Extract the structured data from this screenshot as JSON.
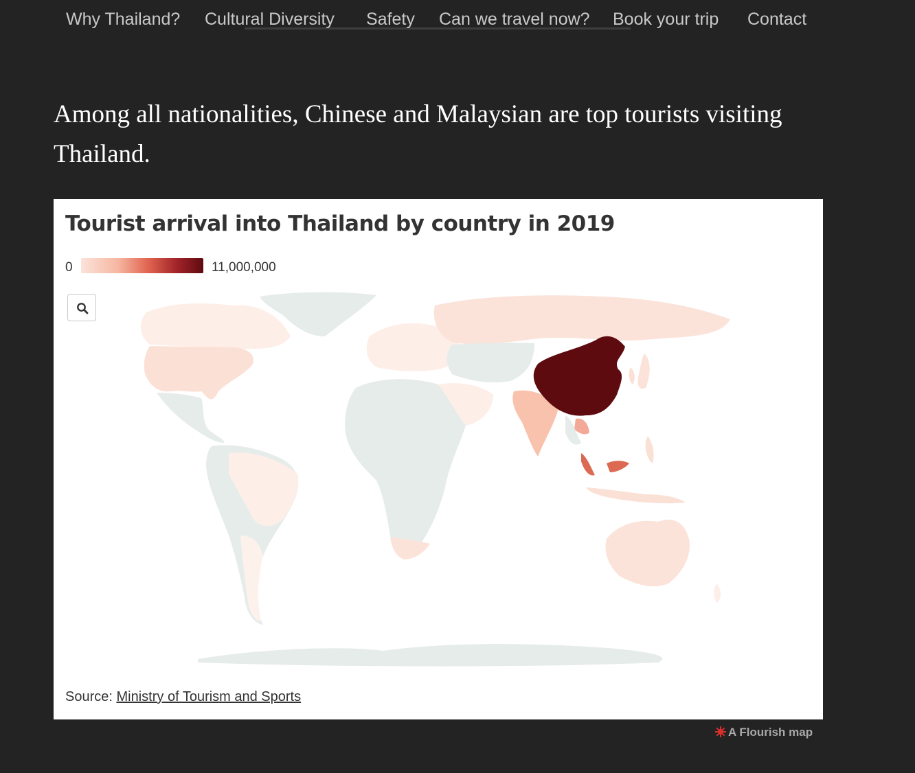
{
  "nav": {
    "items": [
      {
        "label": "Why Thailand?"
      },
      {
        "label": "Cultural Diversity"
      },
      {
        "label": "Safety"
      },
      {
        "label": "Can we travel now?"
      },
      {
        "label": "Book your trip"
      },
      {
        "label": "Contact"
      }
    ]
  },
  "headline": "Among all nationalities, Chinese and Malaysian are top tourists visiting Thailand.",
  "chart": {
    "title": "Tourist arrival into Thailand by country in 2019",
    "legend_min": "0",
    "legend_max": "11,000,000",
    "source_label": "Source:",
    "source_link": "Ministry of Tourism and Sports",
    "credit": "A Flourish map"
  },
  "chart_data": {
    "type": "choropleth",
    "title": "Tourist arrival into Thailand by country in 2019",
    "scale": {
      "min": 0,
      "max": 11000000
    },
    "regions": [
      {
        "name": "China",
        "value": 11000000
      },
      {
        "name": "Malaysia",
        "value": 4200000
      },
      {
        "name": "India",
        "value": 1900000
      },
      {
        "name": "Laos",
        "value": 1800000
      },
      {
        "name": "Russia",
        "value": 1500000
      },
      {
        "name": "United States",
        "value": 1200000
      },
      {
        "name": "Australia",
        "value": 800000
      },
      {
        "name": "Brazil",
        "value": 200000
      },
      {
        "name": "Argentina",
        "value": 100000
      },
      {
        "name": "South Africa",
        "value": 150000
      },
      {
        "name": "Canada",
        "value": 300000
      }
    ]
  },
  "colors": {
    "background": "#232323",
    "scale_low": "#fbe3da",
    "scale_high": "#5e0b10",
    "no_data_land": "#e6ecea"
  }
}
